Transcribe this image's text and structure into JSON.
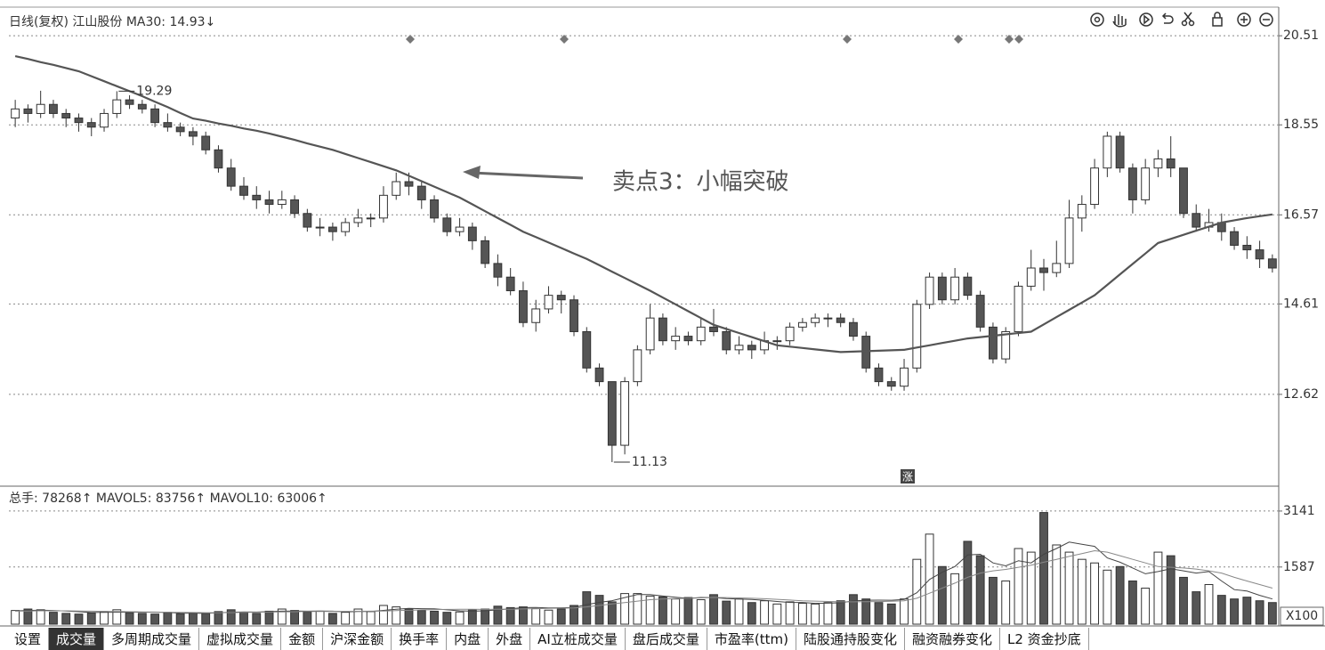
{
  "chart_data": [
    {
      "type": "candlestick",
      "title": "日线(复权) 江山股份 MA30: 14.93↓",
      "annotation": "卖点3：小幅突破",
      "badge": "涨",
      "up_color": "#ffffff",
      "down_color": "#555555",
      "edge_color": "#333333",
      "ylim": [
        10.62,
        21.14
      ],
      "yticks": [
        12.62,
        14.61,
        16.57,
        18.55,
        20.51
      ],
      "grid": true,
      "high_label_index": 8,
      "low_label_index": 47,
      "ohlc": [
        [
          18.7,
          19.1,
          18.5,
          18.9
        ],
        [
          18.9,
          19.0,
          18.6,
          18.8
        ],
        [
          18.8,
          19.3,
          18.7,
          19.0
        ],
        [
          19.0,
          19.1,
          18.7,
          18.8
        ],
        [
          18.8,
          18.9,
          18.5,
          18.7
        ],
        [
          18.7,
          18.8,
          18.4,
          18.6
        ],
        [
          18.6,
          18.7,
          18.3,
          18.5
        ],
        [
          18.5,
          18.9,
          18.4,
          18.8
        ],
        [
          18.8,
          19.29,
          18.7,
          19.1
        ],
        [
          19.1,
          19.2,
          18.9,
          19.0
        ],
        [
          19.0,
          19.1,
          18.8,
          18.9
        ],
        [
          18.9,
          19.0,
          18.5,
          18.6
        ],
        [
          18.6,
          18.8,
          18.4,
          18.5
        ],
        [
          18.5,
          18.6,
          18.3,
          18.4
        ],
        [
          18.4,
          18.5,
          18.1,
          18.3
        ],
        [
          18.3,
          18.4,
          17.9,
          18.0
        ],
        [
          18.0,
          18.1,
          17.5,
          17.6
        ],
        [
          17.6,
          17.8,
          17.1,
          17.2
        ],
        [
          17.2,
          17.4,
          16.9,
          17.0
        ],
        [
          17.0,
          17.2,
          16.7,
          16.9
        ],
        [
          16.9,
          17.1,
          16.6,
          16.8
        ],
        [
          16.8,
          17.1,
          16.7,
          16.9
        ],
        [
          16.9,
          17.0,
          16.5,
          16.6
        ],
        [
          16.6,
          16.7,
          16.2,
          16.3
        ],
        [
          16.3,
          16.5,
          16.1,
          16.3
        ],
        [
          16.3,
          16.4,
          16.0,
          16.2
        ],
        [
          16.2,
          16.5,
          16.1,
          16.4
        ],
        [
          16.4,
          16.7,
          16.3,
          16.5
        ],
        [
          16.5,
          16.6,
          16.3,
          16.5
        ],
        [
          16.5,
          17.2,
          16.4,
          17.0
        ],
        [
          17.0,
          17.5,
          16.9,
          17.3
        ],
        [
          17.3,
          17.5,
          17.0,
          17.2
        ],
        [
          17.2,
          17.3,
          16.7,
          16.9
        ],
        [
          16.9,
          17.0,
          16.4,
          16.5
        ],
        [
          16.5,
          16.6,
          16.1,
          16.2
        ],
        [
          16.2,
          16.5,
          16.1,
          16.3
        ],
        [
          16.3,
          16.4,
          15.8,
          16.0
        ],
        [
          16.0,
          16.1,
          15.4,
          15.5
        ],
        [
          15.5,
          15.7,
          15.0,
          15.2
        ],
        [
          15.2,
          15.4,
          14.8,
          14.9
        ],
        [
          14.9,
          15.1,
          14.1,
          14.2
        ],
        [
          14.2,
          14.7,
          14.0,
          14.5
        ],
        [
          14.5,
          15.0,
          14.4,
          14.8
        ],
        [
          14.8,
          14.9,
          14.4,
          14.7
        ],
        [
          14.7,
          14.8,
          13.9,
          14.0
        ],
        [
          14.0,
          14.1,
          13.1,
          13.2
        ],
        [
          13.2,
          13.3,
          12.8,
          12.9
        ],
        [
          12.9,
          12.9,
          11.13,
          11.5
        ],
        [
          11.5,
          13.0,
          11.3,
          12.9
        ],
        [
          12.9,
          13.7,
          12.8,
          13.6
        ],
        [
          13.6,
          14.6,
          13.5,
          14.3
        ],
        [
          14.3,
          14.4,
          13.7,
          13.8
        ],
        [
          13.8,
          14.1,
          13.6,
          13.9
        ],
        [
          13.9,
          14.0,
          13.7,
          13.8
        ],
        [
          13.8,
          14.3,
          13.7,
          14.1
        ],
        [
          14.1,
          14.5,
          13.9,
          14.0
        ],
        [
          14.0,
          14.1,
          13.5,
          13.6
        ],
        [
          13.6,
          13.9,
          13.5,
          13.7
        ],
        [
          13.7,
          13.8,
          13.4,
          13.6
        ],
        [
          13.6,
          14.0,
          13.5,
          13.8
        ],
        [
          13.8,
          13.9,
          13.6,
          13.8
        ],
        [
          13.8,
          14.2,
          13.7,
          14.1
        ],
        [
          14.1,
          14.3,
          14.0,
          14.2
        ],
        [
          14.2,
          14.4,
          14.1,
          14.3
        ],
        [
          14.3,
          14.4,
          14.1,
          14.3
        ],
        [
          14.3,
          14.4,
          14.1,
          14.2
        ],
        [
          14.2,
          14.3,
          13.8,
          13.9
        ],
        [
          13.9,
          14.0,
          13.1,
          13.2
        ],
        [
          13.2,
          13.3,
          12.8,
          12.9
        ],
        [
          12.9,
          13.0,
          12.7,
          12.8
        ],
        [
          12.8,
          13.4,
          12.7,
          13.2
        ],
        [
          13.2,
          14.7,
          13.1,
          14.6
        ],
        [
          14.6,
          15.3,
          14.5,
          15.2
        ],
        [
          15.2,
          15.3,
          14.6,
          14.7
        ],
        [
          14.7,
          15.4,
          14.6,
          15.2
        ],
        [
          15.2,
          15.3,
          14.7,
          14.8
        ],
        [
          14.8,
          14.9,
          14.0,
          14.1
        ],
        [
          14.1,
          14.2,
          13.3,
          13.4
        ],
        [
          13.4,
          14.1,
          13.3,
          14.0
        ],
        [
          14.0,
          15.1,
          13.9,
          15.0
        ],
        [
          15.0,
          15.8,
          14.9,
          15.4
        ],
        [
          15.4,
          15.6,
          14.9,
          15.3
        ],
        [
          15.3,
          16.0,
          15.2,
          15.5
        ],
        [
          15.5,
          16.9,
          15.4,
          16.5
        ],
        [
          16.5,
          17.0,
          16.2,
          16.8
        ],
        [
          16.8,
          17.8,
          16.7,
          17.6
        ],
        [
          17.6,
          18.4,
          17.4,
          18.3
        ],
        [
          18.3,
          18.4,
          17.5,
          17.6
        ],
        [
          17.6,
          17.7,
          16.6,
          16.9
        ],
        [
          16.9,
          17.8,
          16.8,
          17.6
        ],
        [
          17.6,
          18.0,
          17.4,
          17.8
        ],
        [
          17.8,
          18.3,
          17.4,
          17.6
        ],
        [
          17.6,
          17.6,
          16.5,
          16.6
        ],
        [
          16.6,
          16.8,
          16.2,
          16.3
        ],
        [
          16.3,
          16.7,
          16.2,
          16.4
        ],
        [
          16.4,
          16.6,
          16.0,
          16.2
        ],
        [
          16.2,
          16.3,
          15.8,
          15.9
        ],
        [
          15.9,
          16.1,
          15.6,
          15.8
        ],
        [
          15.8,
          16.0,
          15.4,
          15.6
        ],
        [
          15.6,
          15.7,
          15.3,
          15.4
        ]
      ],
      "ma_line": {
        "color": "#555555",
        "values": [
          20.06,
          20.0,
          19.93,
          19.87,
          19.8,
          19.73,
          19.62,
          19.51,
          19.4,
          19.29,
          19.18,
          19.06,
          18.94,
          18.81,
          18.69,
          18.64,
          18.58,
          18.53,
          18.47,
          18.42,
          18.36,
          18.29,
          18.22,
          18.14,
          18.07,
          18.0,
          17.91,
          17.82,
          17.73,
          17.64,
          17.55,
          17.43,
          17.31,
          17.19,
          17.07,
          16.95,
          16.8,
          16.65,
          16.5,
          16.35,
          16.2,
          16.08,
          15.96,
          15.84,
          15.72,
          15.6,
          15.46,
          15.32,
          15.18,
          15.04,
          14.9,
          14.75,
          14.6,
          14.45,
          14.3,
          14.15,
          14.06,
          13.97,
          13.88,
          13.79,
          13.7,
          13.67,
          13.64,
          13.61,
          13.58,
          13.55,
          13.56,
          13.57,
          13.58,
          13.59,
          13.6,
          13.65,
          13.7,
          13.75,
          13.8,
          13.85,
          13.88,
          13.91,
          13.94,
          13.97,
          14.0,
          14.16,
          14.32,
          14.48,
          14.64,
          14.8,
          15.03,
          15.26,
          15.49,
          15.72,
          15.95,
          16.04,
          16.13,
          16.22,
          16.31,
          16.4,
          16.45,
          16.5,
          16.54,
          16.58
        ]
      }
    },
    {
      "type": "volume",
      "title": "总手: 78268↑ MAVOL5: 83756↑ MAVOL10: 63006↑",
      "unit": "X100",
      "ylim": [
        0,
        3782
      ],
      "yticks": [
        1587,
        3141
      ],
      "grid": true,
      "values": [
        380,
        420,
        400,
        330,
        300,
        280,
        310,
        350,
        400,
        320,
        300,
        280,
        330,
        290,
        310,
        300,
        350,
        400,
        330,
        300,
        360,
        420,
        380,
        340,
        360,
        300,
        330,
        420,
        350,
        520,
        480,
        420,
        380,
        360,
        330,
        340,
        400,
        420,
        500,
        460,
        480,
        430,
        390,
        420,
        520,
        900,
        800,
        620,
        850,
        850,
        780,
        760,
        700,
        740,
        680,
        820,
        640,
        700,
        600,
        650,
        560,
        620,
        580,
        560,
        600,
        650,
        820,
        700,
        600,
        560,
        700,
        1800,
        2500,
        1600,
        1400,
        2300,
        1900,
        1300,
        1200,
        2100,
        2000,
        3100,
        2200,
        2000,
        1800,
        1700,
        1500,
        1600,
        1200,
        1000,
        2000,
        1900,
        1300,
        900,
        1100,
        800,
        700,
        750,
        650,
        600
      ],
      "mavol5": {
        "color": "#444444",
        "values": [
          370,
          380,
          390,
          380,
          366,
          346,
          324,
          328,
          332,
          336,
          334,
          330,
          326,
          306,
          302,
          302,
          316,
          330,
          338,
          336,
          348,
          362,
          366,
          360,
          364,
          360,
          342,
          350,
          352,
          384,
          416,
          440,
          430,
          426,
          398,
          372,
          362,
          370,
          398,
          424,
          460,
          462,
          452,
          456,
          464,
          544,
          606,
          652,
          738,
          823,
          820,
          780,
          746,
          716,
          742,
          740,
          712,
          700,
          688,
          662,
          630,
          602,
          602,
          578,
          584,
          594,
          646,
          666,
          668,
          666,
          686,
          872,
          1240,
          1440,
          1600,
          1920,
          1940,
          1700,
          1620,
          1760,
          1700,
          1940,
          2100,
          2280,
          2220,
          2160,
          1840,
          1720,
          1560,
          1400,
          1460,
          1540,
          1480,
          1420,
          1460,
          1200,
          960,
          920,
          800,
          700
        ]
      },
      "mavol10": {
        "color": "#888888",
        "values": [
          360,
          365,
          370,
          372,
          370,
          365,
          360,
          355,
          350,
          345,
          340,
          336,
          332,
          328,
          324,
          320,
          320,
          322,
          326,
          330,
          335,
          340,
          345,
          350,
          352,
          355,
          356,
          358,
          360,
          366,
          375,
          385,
          395,
          405,
          410,
          412,
          412,
          410,
          412,
          416,
          422,
          430,
          438,
          445,
          450,
          480,
          520,
          560,
          600,
          640,
          680,
          700,
          710,
          718,
          730,
          742,
          738,
          730,
          720,
          706,
          690,
          670,
          650,
          640,
          630,
          620,
          620,
          622,
          628,
          636,
          650,
          720,
          860,
          1000,
          1140,
          1300,
          1420,
          1480,
          1520,
          1580,
          1640,
          1720,
          1800,
          1880,
          1960,
          2040,
          2000,
          1900,
          1800,
          1700,
          1600,
          1580,
          1560,
          1530,
          1480,
          1420,
          1300,
          1200,
          1100,
          1000
        ]
      }
    }
  ],
  "tabs": [
    "设置",
    "成交量",
    "多周期成交量",
    "虚拟成交量",
    "金额",
    "沪深金额",
    "换手率",
    "内盘",
    "外盘",
    "AI立桩成交量",
    "盘后成交量",
    "市盈率(ttm)",
    "陆股通持股变化",
    "融资融券变化",
    "L2 资金抄底"
  ],
  "selected_tab": 1
}
